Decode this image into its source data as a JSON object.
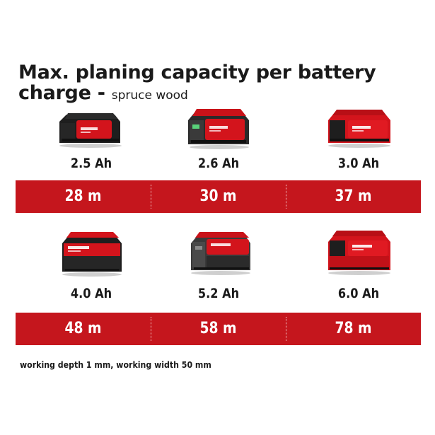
{
  "title": {
    "main": "Max. planing capacity per battery charge - ",
    "sub": "spruce wood"
  },
  "rows": [
    {
      "batteries": [
        {
          "capacity": "2.5 Ah",
          "icon": "battery-2-5ah-icon",
          "value": "28 m"
        },
        {
          "capacity": "2.6 Ah",
          "icon": "battery-2-6ah-icon",
          "value": "30 m"
        },
        {
          "capacity": "3.0 Ah",
          "icon": "battery-3-0ah-icon",
          "value": "37 m"
        }
      ]
    },
    {
      "batteries": [
        {
          "capacity": "4.0 Ah",
          "icon": "battery-4-0ah-icon",
          "value": "48 m"
        },
        {
          "capacity": "5.2 Ah",
          "icon": "battery-5-2ah-icon",
          "value": "58 m"
        },
        {
          "capacity": "6.0 Ah",
          "icon": "battery-6-0ah-icon",
          "value": "78 m"
        }
      ]
    }
  ],
  "footnote": "working depth 1 mm, working width 50 mm",
  "colors": {
    "band": "#c5161d",
    "battery_red": "#d3141c",
    "battery_dark": "#1e1e1e"
  }
}
